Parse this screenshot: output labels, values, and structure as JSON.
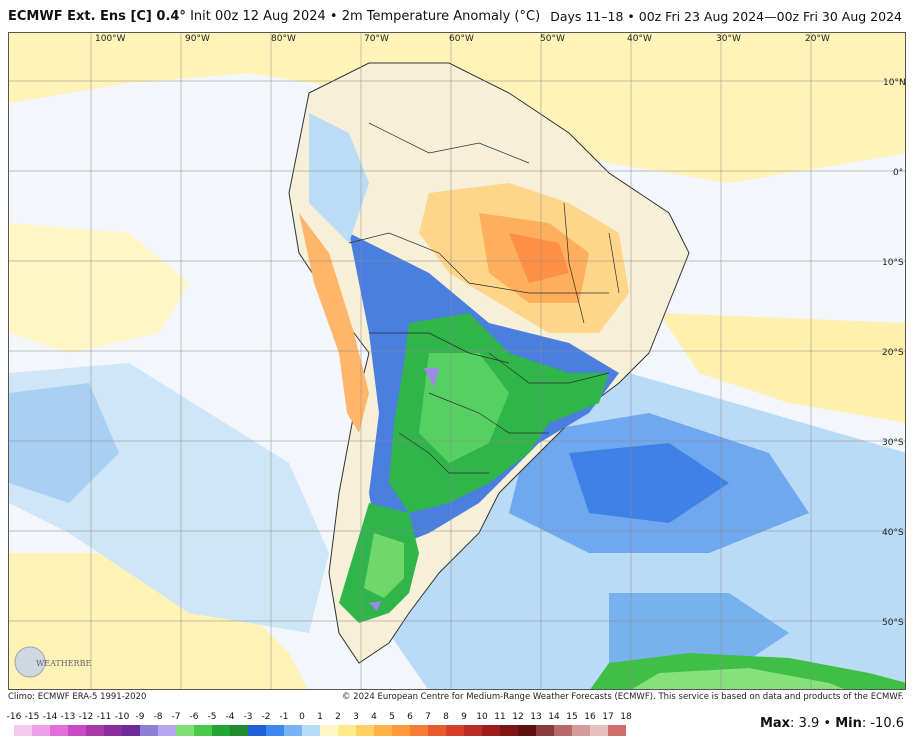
{
  "header": {
    "model": "ECMWF Ext. Ens [C] 0.4°",
    "init": "Init 00z 12 Aug 2024",
    "variable": "2m Temperature Anomaly (°C)",
    "valid": "Days 11–18 • 00z Fri 23 Aug 2024—00z Fri 30 Aug 2024"
  },
  "longitude_labels": [
    "100°W",
    "90°W",
    "80°W",
    "70°W",
    "60°W",
    "50°W",
    "40°W",
    "30°W",
    "20°W"
  ],
  "latitude_labels": [
    "10°N",
    "0°",
    "10°S",
    "20°S",
    "30°S",
    "40°S",
    "50°S"
  ],
  "footer": {
    "climo": "Climo: ECMWF ERA-5 1991-2020",
    "copyright": "© 2024 European Centre for Medium-Range Weather Forecasts (ECMWF). This service is based on data and products of the ECMWF."
  },
  "colorbar": {
    "values": [
      "-16",
      "-15",
      "-14",
      "-13",
      "-12",
      "-11",
      "-10",
      "-9",
      "-8",
      "-7",
      "-6",
      "-5",
      "-4",
      "-3",
      "-2",
      "-1",
      "0",
      "1",
      "2",
      "3",
      "4",
      "5",
      "6",
      "7",
      "8",
      "9",
      "10",
      "11",
      "12",
      "13",
      "14",
      "15",
      "16",
      "17",
      "18"
    ],
    "colors": [
      "#f5c8f0",
      "#ee9fe6",
      "#e26fd9",
      "#c94ac7",
      "#a83aa8",
      "#8a2e9e",
      "#6e2a99",
      "#8c7fd6",
      "#b3a6ec",
      "#7fe07a",
      "#4cc84a",
      "#22a535",
      "#1f8a2e",
      "#1f5fd6",
      "#3d86ee",
      "#78b4f2",
      "#b6dcf7",
      "#fff8c4",
      "#ffeb8a",
      "#ffd166",
      "#ffb347",
      "#ff9a3c",
      "#f47c36",
      "#e65c2e",
      "#d44128",
      "#bb2c22",
      "#9c1d1b",
      "#7d1515",
      "#5e1010",
      "#8a3a3a",
      "#b56a6a",
      "#d59a9a",
      "#e9c0c0",
      "#cf6d6d",
      "#b23b3b"
    ],
    "max_label": "Max",
    "max_value": "3.9",
    "min_label": "Min",
    "min_value": "-10.6"
  },
  "logo_text": "WEATHERBELL"
}
